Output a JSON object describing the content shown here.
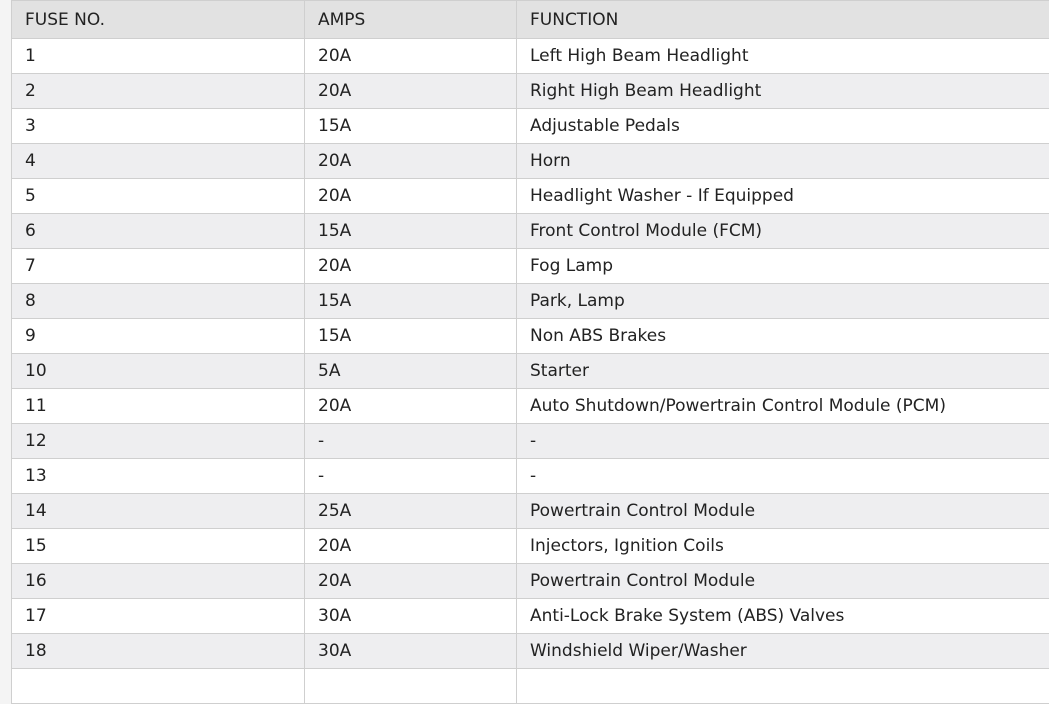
{
  "table": {
    "headers": [
      "FUSE NO.",
      "AMPS",
      "FUNCTION"
    ],
    "rows": [
      [
        "1",
        "20A",
        "Left High Beam Headlight"
      ],
      [
        "2",
        "20A",
        "Right High Beam Headlight"
      ],
      [
        "3",
        "15A",
        "Adjustable Pedals"
      ],
      [
        "4",
        "20A",
        "Horn"
      ],
      [
        "5",
        "20A",
        "Headlight Washer - If Equipped"
      ],
      [
        "6",
        "15A",
        "Front Control Module (FCM)"
      ],
      [
        "7",
        "20A",
        "Fog Lamp"
      ],
      [
        "8",
        "15A",
        "Park, Lamp"
      ],
      [
        "9",
        "15A",
        "Non ABS Brakes"
      ],
      [
        "10",
        "5A",
        "Starter"
      ],
      [
        "11",
        "20A",
        "Auto Shutdown/Powertrain Control Module (PCM)"
      ],
      [
        "12",
        "-",
        "-"
      ],
      [
        "13",
        "-",
        "-"
      ],
      [
        "14",
        "25A",
        "Powertrain Control Module"
      ],
      [
        "15",
        "20A",
        "Injectors, Ignition Coils"
      ],
      [
        "16",
        "20A",
        "Powertrain Control Module"
      ],
      [
        "17",
        "30A",
        "Anti-Lock Brake System (ABS) Valves"
      ],
      [
        "18",
        "30A",
        "Windshield Wiper/Washer"
      ],
      [
        "",
        "",
        ""
      ]
    ]
  }
}
